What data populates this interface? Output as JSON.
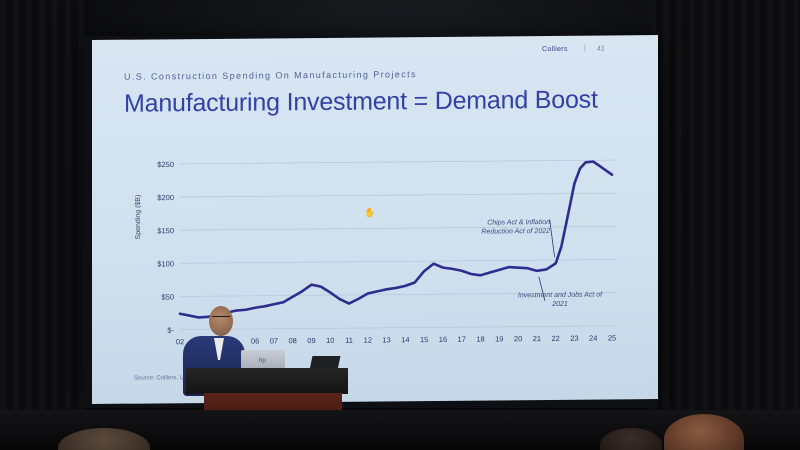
{
  "slide": {
    "brand": "Colliers",
    "separator": "|",
    "page_number": "41",
    "subtitle": "U.S. Construction Spending On Manufacturing Projects",
    "title": "Manufacturing Investment = Demand Boost",
    "source": "Source: Colliers, U.S."
  },
  "chart_data": {
    "type": "line",
    "ylabel": "Spending ($B)",
    "xlabel": "",
    "ylim": [
      -10,
      260
    ],
    "y_ticks": [
      "$250",
      "$200",
      "$150",
      "$100",
      "$50",
      "$-"
    ],
    "y_tick_values": [
      250,
      200,
      150,
      100,
      50,
      0
    ],
    "x_ticks": [
      "02",
      "06",
      "07",
      "08",
      "09",
      "10",
      "11",
      "12",
      "13",
      "14",
      "15",
      "16",
      "17",
      "18",
      "19",
      "20",
      "21",
      "22",
      "23",
      "24",
      "25"
    ],
    "x_tick_values": [
      2002,
      2006,
      2007,
      2008,
      2009,
      2010,
      2011,
      2012,
      2013,
      2014,
      2015,
      2016,
      2017,
      2018,
      2019,
      2020,
      2021,
      2022,
      2023,
      2024,
      2025
    ],
    "grid": true,
    "series": [
      {
        "color": "#2d2d8f",
        "x": [
          2002.0,
          2002.5,
          2003.0,
          2003.5,
          2004.0,
          2004.5,
          2005.0,
          2005.5,
          2006.0,
          2006.5,
          2007.0,
          2007.5,
          2008.0,
          2008.5,
          2009.0,
          2009.5,
          2010.0,
          2010.5,
          2011.0,
          2011.5,
          2012.0,
          2012.5,
          2013.0,
          2013.5,
          2014.0,
          2014.5,
          2015.0,
          2015.5,
          2016.0,
          2016.5,
          2017.0,
          2017.5,
          2018.0,
          2018.5,
          2019.0,
          2019.5,
          2020.0,
          2020.5,
          2021.0,
          2021.5,
          2022.0,
          2022.3,
          2022.6,
          2023.0,
          2023.3,
          2023.6,
          2024.0,
          2024.3,
          2024.6,
          2025.0
        ],
        "y": [
          24,
          21,
          18,
          19,
          22,
          25,
          28,
          29,
          32,
          34,
          37,
          40,
          48,
          56,
          66,
          63,
          54,
          44,
          37,
          44,
          52,
          55,
          58,
          60,
          63,
          68,
          85,
          96,
          90,
          88,
          85,
          80,
          78,
          82,
          86,
          90,
          89,
          88,
          84,
          86,
          95,
          120,
          160,
          215,
          238,
          247,
          248,
          242,
          236,
          228
        ]
      }
    ],
    "annotations": [
      {
        "text": "Chips Act & Inflation Reduction Act of 2022",
        "x": 2022.0,
        "y": 95
      },
      {
        "text": "Investment and Jobs Act of 2021",
        "x": 2021.0,
        "y": 84
      }
    ]
  },
  "scene": {
    "cursor_glyph": "✋",
    "laptop_logo": "hp"
  },
  "colors": {
    "slide_bg": "#d2e2ef",
    "title": "#3340a8",
    "line": "#2d2d8f"
  }
}
